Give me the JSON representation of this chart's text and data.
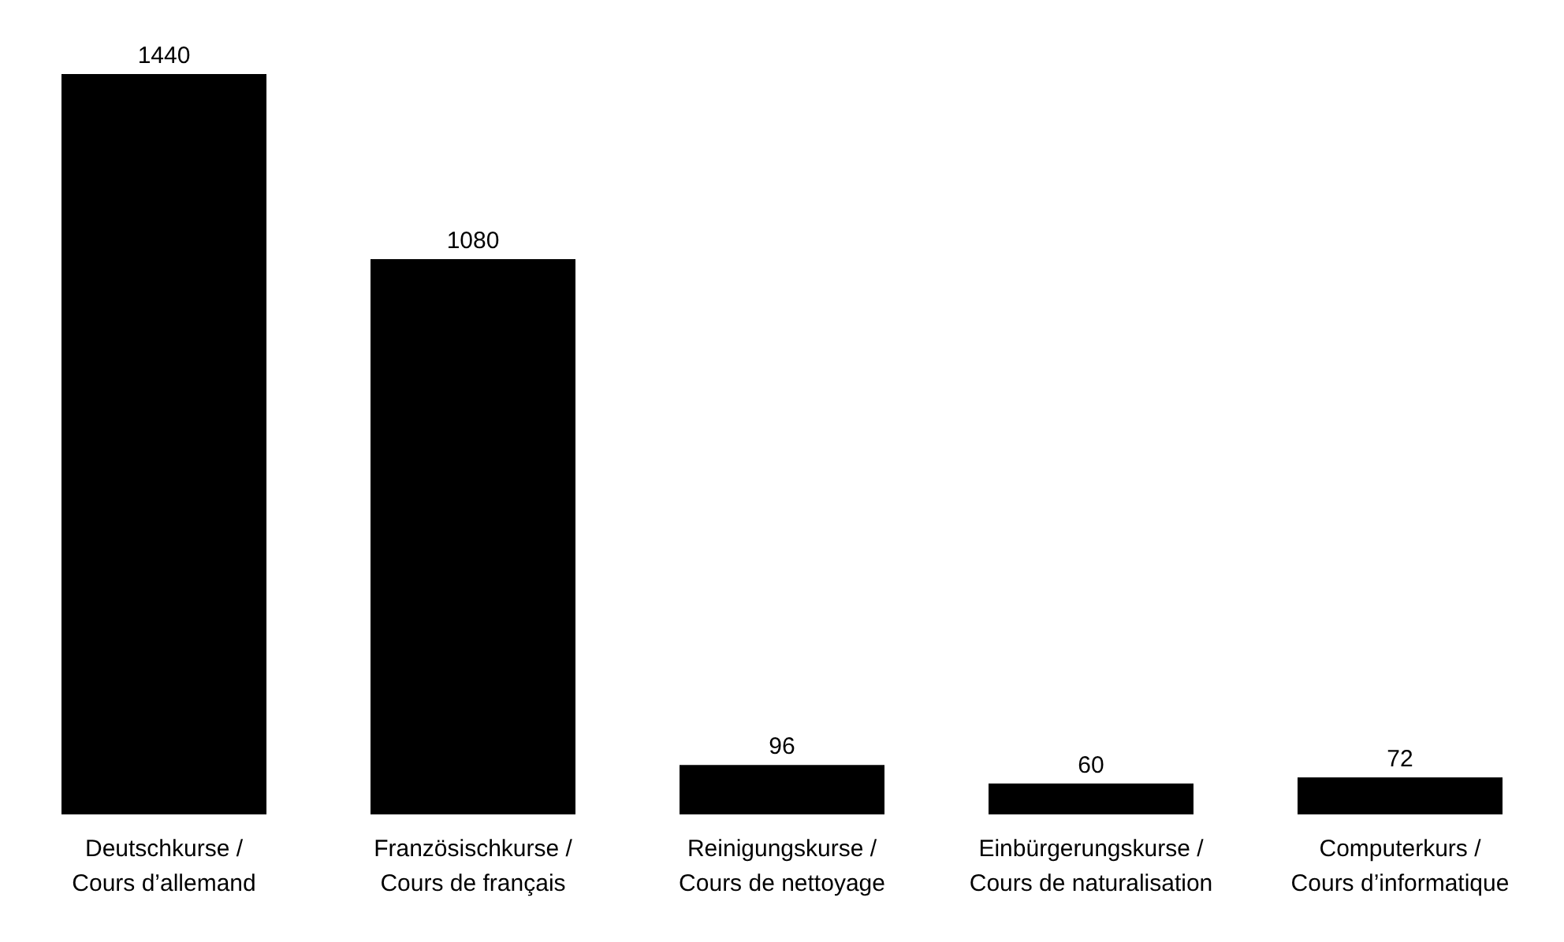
{
  "chart_data": {
    "type": "bar",
    "categories": [
      "Deutschkurse /\nCours d’allemand",
      "Französischkurse /\nCours de français",
      "Reinigungskurse /\nCours de nettoyage",
      "Einbürgerungskurse /\nCours de naturalisation",
      "Computerkurs /\nCours d’informatique"
    ],
    "values": [
      1440,
      1080,
      96,
      60,
      72
    ],
    "color": "#000000",
    "data_labels": true
  }
}
